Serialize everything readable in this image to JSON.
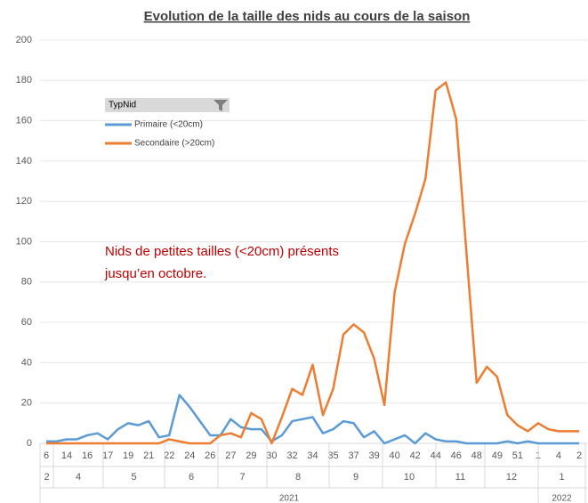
{
  "chart_data": {
    "type": "line",
    "title": "Evolution de la taille des nids au cours de la saison",
    "legend_title": "TypNid",
    "annotation": [
      "Nids de petites tailles (<20cm) présents",
      "jusqu’en octobre."
    ],
    "categories": [
      "6",
      null,
      "14",
      null,
      "16",
      null,
      "17",
      null,
      "19",
      null,
      "21",
      null,
      "22",
      null,
      "24",
      null,
      "26",
      null,
      "27",
      null,
      "29",
      null,
      "30",
      null,
      "32",
      null,
      "34",
      null,
      "35",
      null,
      "37",
      null,
      "39",
      null,
      "40",
      null,
      "42",
      null,
      "44",
      null,
      "46",
      null,
      "48",
      null,
      "49",
      null,
      "51",
      null,
      "1",
      null,
      "4",
      null,
      "2"
    ],
    "months": [
      "2",
      "4",
      "5",
      "6",
      "7",
      "8",
      "9",
      "10",
      "11",
      "12",
      "1"
    ],
    "years": [
      "2021",
      "2022"
    ],
    "series": [
      {
        "name": "Primaire (<20cm)",
        "color": "#5b9bd5",
        "values": [
          1,
          1,
          2,
          2,
          4,
          5,
          2,
          7,
          10,
          9,
          11,
          3,
          4,
          24,
          18,
          11,
          4,
          4,
          12,
          8,
          7,
          7,
          1,
          4,
          11,
          12,
          13,
          5,
          7,
          11,
          10,
          3,
          6,
          0,
          2,
          4,
          0,
          5,
          2,
          1,
          1,
          0,
          0,
          0,
          0,
          1,
          0,
          1,
          0,
          0,
          0,
          0,
          0
        ]
      },
      {
        "name": "Secondaire (>20cm)",
        "color": "#ed7d31",
        "values": [
          0,
          0,
          0,
          0,
          0,
          0,
          0,
          0,
          0,
          0,
          0,
          0,
          2,
          1,
          0,
          0,
          0,
          4,
          5,
          3,
          15,
          12,
          0,
          13,
          27,
          24,
          39,
          14,
          27,
          54,
          59,
          55,
          42,
          19,
          75,
          99,
          114,
          131,
          175,
          179,
          161,
          95,
          30,
          38,
          33,
          14,
          9,
          6,
          10,
          7,
          6,
          6,
          6
        ]
      }
    ],
    "ylim": [
      0,
      200
    ],
    "yticks": [
      0,
      20,
      40,
      60,
      80,
      100,
      120,
      140,
      160,
      180,
      200
    ],
    "grid": true
  }
}
